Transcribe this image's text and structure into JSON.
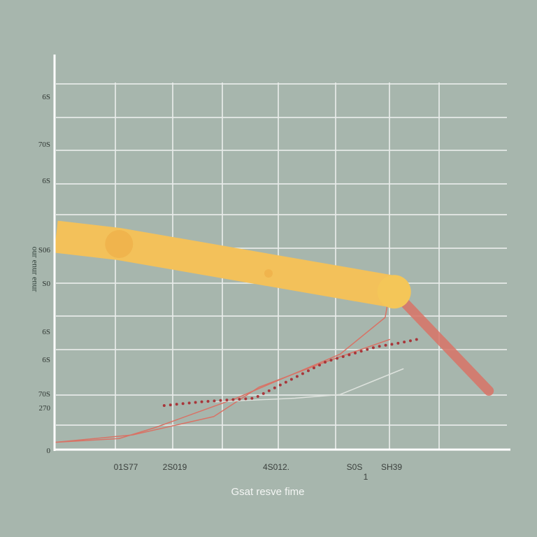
{
  "chart_data": {
    "type": "line",
    "title": "",
    "xlabel": "Gsat resve fime",
    "ylabel": "ɹnuǝ ɹnuǝ ɹno",
    "x_tick_labels": [
      "01S77",
      "2S019",
      "4S012.",
      "S0S",
      "1",
      "SH39"
    ],
    "y_tick_labels": [
      "6S",
      "70S",
      "6S",
      "S06",
      "S0",
      "6S",
      "6S",
      "70S",
      "270",
      "0"
    ],
    "ylim": [
      0,
      10
    ],
    "xlim": [
      0,
      10
    ],
    "grid": true,
    "series": [
      {
        "color": "#f3c15a",
        "x": [
          0,
          1.4,
          7.5
        ],
        "y": [
          5.8,
          5.6,
          4.3
        ]
      },
      {
        "color": "#d87366",
        "x": [
          7.5,
          9.6
        ],
        "y": [
          4.3,
          1.6
        ]
      },
      {
        "color": "#d87366",
        "x": [
          0,
          1.4,
          2.2,
          4.0,
          6.3,
          7.3,
          7.4
        ],
        "y": [
          0.2,
          0.3,
          0.6,
          1.4,
          2.6,
          3.6,
          4.3
        ]
      },
      {
        "color": "#d87366",
        "x": [
          0,
          1.7,
          3.5,
          4.5,
          6.0,
          7.4
        ],
        "y": [
          0.2,
          0.4,
          0.9,
          1.7,
          2.4,
          3.0
        ]
      },
      {
        "color": "#dde2dd",
        "x": [
          3.5,
          5.3,
          6.3,
          6.7,
          7.7
        ],
        "y": [
          1.3,
          1.4,
          1.5,
          1.7,
          2.2
        ]
      },
      {
        "color": "#a8363a",
        "x": [
          2.4,
          3.2,
          4.4,
          6.0,
          7.1,
          7.6,
          8.0
        ],
        "y": [
          1.2,
          1.3,
          1.4,
          2.4,
          2.8,
          2.9,
          3.0
        ]
      }
    ]
  }
}
